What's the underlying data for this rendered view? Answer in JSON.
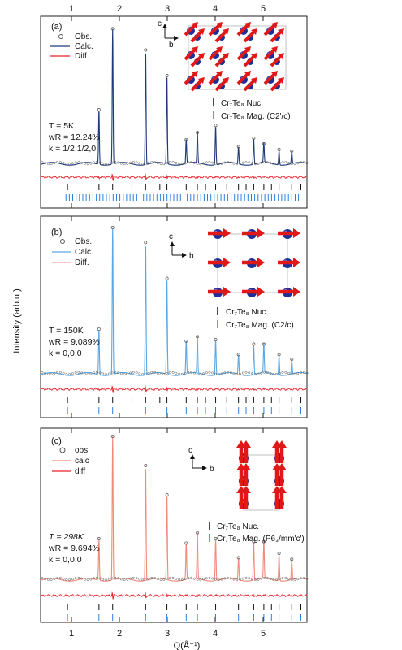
{
  "figure": {
    "ylabel": "Intensity (arb.u.)",
    "xlabel": "Q(Å⁻¹)",
    "top_ticks": [
      "1",
      "2",
      "3",
      "4",
      "5"
    ],
    "bottom_ticks": [
      "1",
      "2",
      "3",
      "4",
      "5"
    ]
  },
  "axes_label": {
    "c": "c",
    "b": "b"
  },
  "chart_data": [
    {
      "type": "line",
      "panel": "(a)",
      "xlim": [
        0.65,
        5.9
      ],
      "legend": {
        "obs": "Obs.",
        "calc": "Calc.",
        "diff": "Diff."
      },
      "colors": {
        "calc": "#1f3a7a",
        "diff": "#e8202a",
        "obs": "#555555",
        "nuc_tick": "#111111",
        "mag_tick": "#2a7fe0"
      },
      "info": {
        "temperature": "T = 5K",
        "wr": "wR = 12.24%",
        "k": "k = 1/2,1/2,0"
      },
      "phases": {
        "nuc": "Cr₇Te₈ Nuc.",
        "mag": "Cr₇Te₈ Mag. (C2'/c)"
      },
      "peaks": [
        [
          1.8,
          0.38
        ],
        [
          2.07,
          0.95
        ],
        [
          2.72,
          0.8
        ],
        [
          3.14,
          0.62
        ],
        [
          3.52,
          0.17
        ],
        [
          3.74,
          0.22
        ],
        [
          4.1,
          0.27
        ],
        [
          4.55,
          0.12
        ],
        [
          4.85,
          0.18
        ],
        [
          5.05,
          0.14
        ],
        [
          5.35,
          0.1
        ],
        [
          5.6,
          0.09
        ]
      ],
      "nuc_ticks": [
        1.18,
        1.8,
        2.07,
        2.45,
        2.72,
        3.0,
        3.14,
        3.52,
        3.74,
        3.9,
        4.1,
        4.32,
        4.55,
        4.7,
        4.85,
        5.05,
        5.2,
        5.35,
        5.6,
        5.78
      ],
      "mag_tick_count": 70
    },
    {
      "type": "line",
      "panel": "(b)",
      "xlim": [
        0.65,
        5.9
      ],
      "legend": {
        "obs": "Obs.",
        "calc": "Calc.",
        "diff": "Diff."
      },
      "colors": {
        "calc": "#5aa8e6",
        "diff": "#e8202a",
        "obs": "#555555",
        "nuc_tick": "#111111",
        "mag_tick": "#2a7fe0"
      },
      "info": {
        "temperature": "T = 150K",
        "wr": "wR = 9.089%",
        "k": "k = 0,0,0"
      },
      "phases": {
        "nuc": "Cr₇Te₈ Nuc.",
        "mag": "Cr₇Te₈ Mag. (C2/c)"
      },
      "peaks": [
        [
          1.8,
          0.3
        ],
        [
          2.07,
          0.98
        ],
        [
          2.72,
          0.88
        ],
        [
          3.14,
          0.64
        ],
        [
          3.52,
          0.22
        ],
        [
          3.74,
          0.25
        ],
        [
          4.1,
          0.23
        ],
        [
          4.55,
          0.13
        ],
        [
          4.85,
          0.2
        ],
        [
          5.05,
          0.2
        ],
        [
          5.35,
          0.13
        ],
        [
          5.6,
          0.1
        ]
      ],
      "nuc_ticks": [
        1.18,
        1.8,
        2.07,
        2.45,
        2.72,
        3.0,
        3.14,
        3.52,
        3.74,
        3.9,
        4.1,
        4.32,
        4.55,
        4.7,
        4.85,
        5.05,
        5.2,
        5.35,
        5.6,
        5.78
      ],
      "mag_ticks": [
        1.18,
        1.8,
        2.07,
        2.45,
        2.72,
        3.14,
        3.52,
        3.74,
        3.9,
        4.1,
        4.32,
        4.55,
        4.7,
        4.85,
        5.05,
        5.2,
        5.35,
        5.6,
        5.78
      ]
    },
    {
      "type": "line",
      "panel": "(c)",
      "xlim": [
        0.65,
        5.9
      ],
      "legend": {
        "obs": "obs",
        "calc": "calc",
        "diff": "diff"
      },
      "colors": {
        "calc": "#f08a7a",
        "diff": "#e8202a",
        "obs": "#555555",
        "nuc_tick": "#111111",
        "mag_tick": "#2a7fe0"
      },
      "info": {
        "temperature": "T = 298K",
        "wr": "wR = 9.694%",
        "k": "k = 0,0,0"
      },
      "phases": {
        "nuc": "Cr₇Te₈ Nuc.",
        "mag": "Cr₇Te₈ Mag. (P6₃/mm'c')"
      },
      "peaks": [
        [
          1.8,
          0.28
        ],
        [
          2.07,
          0.98
        ],
        [
          2.72,
          0.78
        ],
        [
          3.14,
          0.58
        ],
        [
          3.52,
          0.25
        ],
        [
          3.74,
          0.32
        ],
        [
          4.1,
          0.28
        ],
        [
          4.55,
          0.15
        ],
        [
          4.85,
          0.26
        ],
        [
          5.05,
          0.26
        ],
        [
          5.35,
          0.18
        ],
        [
          5.6,
          0.14
        ]
      ],
      "nuc_ticks": [
        1.18,
        1.8,
        2.07,
        2.72,
        3.14,
        3.52,
        3.74,
        4.1,
        4.55,
        4.85,
        5.05,
        5.2,
        5.35,
        5.6,
        5.78
      ],
      "mag_ticks": [
        1.18,
        1.8,
        2.07,
        2.72,
        3.14,
        3.52,
        3.74,
        4.1,
        4.55,
        4.85,
        5.05,
        5.2,
        5.35,
        5.6,
        5.78
      ]
    }
  ]
}
